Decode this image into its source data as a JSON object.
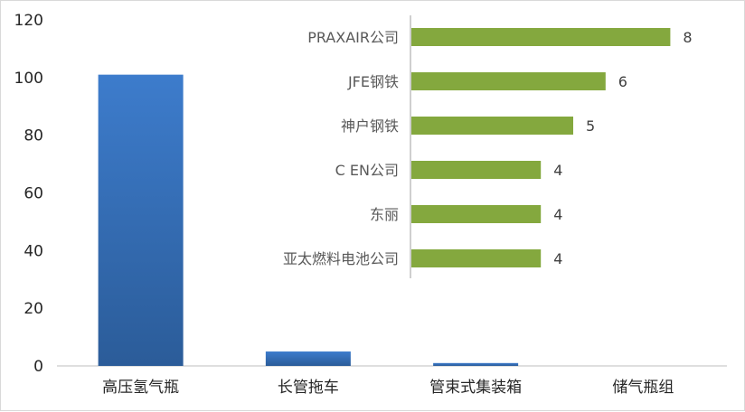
{
  "chart_data": [
    {
      "type": "bar",
      "orientation": "vertical",
      "title": "",
      "xlabel": "",
      "ylabel": "",
      "categories": [
        "高压氢气瓶",
        "长管拖车",
        "管束式集装箱",
        "储气瓶组"
      ],
      "values": [
        101,
        5,
        1,
        0
      ],
      "ylim": [
        0,
        120
      ],
      "yticks": [
        0,
        20,
        40,
        60,
        80,
        100,
        120
      ],
      "grid": false,
      "legend": "none",
      "colors": {
        "bar_top": "#3d7ccc",
        "bar_bottom": "#2b5c99",
        "axis": "#bfbfbf"
      }
    },
    {
      "type": "bar",
      "orientation": "horizontal",
      "title": "",
      "xlabel": "",
      "ylabel": "",
      "categories": [
        "PRAXAIR公司",
        "JFE钢铁",
        "神户钢铁",
        "C EN公司",
        "东丽",
        "亚太燃料电池公司"
      ],
      "values": [
        8,
        6,
        5,
        4,
        4,
        4
      ],
      "data_labels": [
        "8",
        "6",
        "5",
        "4",
        "4",
        "4"
      ],
      "xlim": [
        0,
        8
      ],
      "grid": false,
      "legend": "none",
      "colors": {
        "bar": "#84a83e",
        "axis": "#bfbfbf"
      }
    }
  ]
}
